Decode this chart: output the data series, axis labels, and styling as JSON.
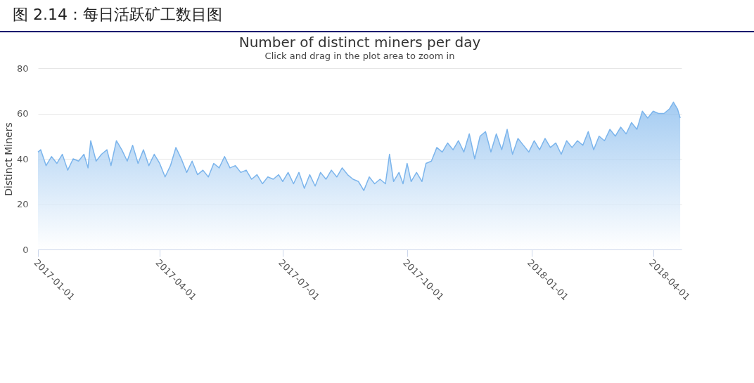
{
  "chart_data": {
    "type": "area",
    "title": "Number of distinct miners per day",
    "subtitle": "Click and drag in the plot area to zoom in",
    "ylabel": "Distinct Miners",
    "annotations": [
      "图 2.14：每日活跃矿工数目图"
    ],
    "x": [
      "2017-01-01",
      "2017-01-03",
      "2017-01-07",
      "2017-01-11",
      "2017-01-15",
      "2017-01-19",
      "2017-01-23",
      "2017-01-27",
      "2017-01-31",
      "2017-02-04",
      "2017-02-07",
      "2017-02-09",
      "2017-02-13",
      "2017-02-17",
      "2017-02-21",
      "2017-02-24",
      "2017-02-28",
      "2017-03-04",
      "2017-03-08",
      "2017-03-12",
      "2017-03-16",
      "2017-03-20",
      "2017-03-24",
      "2017-03-28",
      "2017-04-01",
      "2017-04-05",
      "2017-04-09",
      "2017-04-13",
      "2017-04-17",
      "2017-04-21",
      "2017-04-25",
      "2017-04-29",
      "2017-05-03",
      "2017-05-07",
      "2017-05-11",
      "2017-05-15",
      "2017-05-19",
      "2017-05-23",
      "2017-05-27",
      "2017-05-31",
      "2017-06-04",
      "2017-06-08",
      "2017-06-12",
      "2017-06-16",
      "2017-06-20",
      "2017-06-24",
      "2017-06-28",
      "2017-07-01",
      "2017-07-05",
      "2017-07-09",
      "2017-07-13",
      "2017-07-17",
      "2017-07-21",
      "2017-07-25",
      "2017-07-29",
      "2017-08-02",
      "2017-08-06",
      "2017-08-10",
      "2017-08-14",
      "2017-08-18",
      "2017-08-22",
      "2017-08-26",
      "2017-08-30",
      "2017-09-03",
      "2017-09-07",
      "2017-09-11",
      "2017-09-15",
      "2017-09-18",
      "2017-09-21",
      "2017-09-25",
      "2017-09-28",
      "2017-10-01",
      "2017-10-04",
      "2017-10-08",
      "2017-10-12",
      "2017-10-15",
      "2017-10-19",
      "2017-10-23",
      "2017-10-27",
      "2017-10-31",
      "2017-11-04",
      "2017-11-08",
      "2017-11-12",
      "2017-11-16",
      "2017-11-20",
      "2017-11-24",
      "2017-11-28",
      "2017-12-02",
      "2017-12-06",
      "2017-12-10",
      "2017-12-14",
      "2017-12-18",
      "2017-12-22",
      "2017-12-26",
      "2017-12-30",
      "2018-01-03",
      "2018-01-07",
      "2018-01-11",
      "2018-01-15",
      "2018-01-19",
      "2018-01-23",
      "2018-01-27",
      "2018-01-31",
      "2018-02-04",
      "2018-02-08",
      "2018-02-12",
      "2018-02-16",
      "2018-02-20",
      "2018-02-24",
      "2018-02-28",
      "2018-03-04",
      "2018-03-08",
      "2018-03-12",
      "2018-03-16",
      "2018-03-20",
      "2018-03-24",
      "2018-03-28",
      "2018-04-01",
      "2018-04-05",
      "2018-04-09",
      "2018-04-13",
      "2018-04-16",
      "2018-04-19",
      "2018-04-21"
    ],
    "series": [
      {
        "color": "#7cb5ec",
        "values": [
          43,
          44,
          37,
          41,
          38,
          42,
          35,
          40,
          39,
          42,
          36,
          48,
          39,
          42,
          44,
          37,
          48,
          44,
          39,
          46,
          38,
          44,
          37,
          42,
          38,
          32,
          37,
          45,
          40,
          34,
          39,
          33,
          35,
          32,
          38,
          36,
          41,
          36,
          37,
          34,
          35,
          31,
          33,
          29,
          32,
          31,
          33,
          30,
          34,
          29,
          34,
          27,
          33,
          28,
          34,
          31,
          35,
          32,
          36,
          33,
          31,
          30,
          26,
          32,
          29,
          31,
          29,
          42,
          30,
          34,
          29,
          38,
          30,
          34,
          30,
          38,
          39,
          45,
          43,
          47,
          44,
          48,
          43,
          51,
          40,
          50,
          52,
          43,
          51,
          44,
          53,
          42,
          49,
          46,
          43,
          48,
          44,
          49,
          45,
          47,
          42,
          48,
          45,
          48,
          46,
          52,
          44,
          50,
          48,
          53,
          50,
          54,
          51,
          56,
          53,
          61,
          58,
          61,
          60,
          60,
          62,
          65,
          62,
          58
        ]
      }
    ],
    "xlim": [
      "2017-01-01",
      "2018-04-22"
    ],
    "xticks": [
      "2017-01-01",
      "2017-04-01",
      "2017-07-01",
      "2017-10-01",
      "2018-01-01",
      "2018-04-01"
    ],
    "ylim": [
      0,
      80
    ],
    "yticks": [
      0,
      20,
      40,
      60,
      80
    ],
    "grid": "y"
  }
}
